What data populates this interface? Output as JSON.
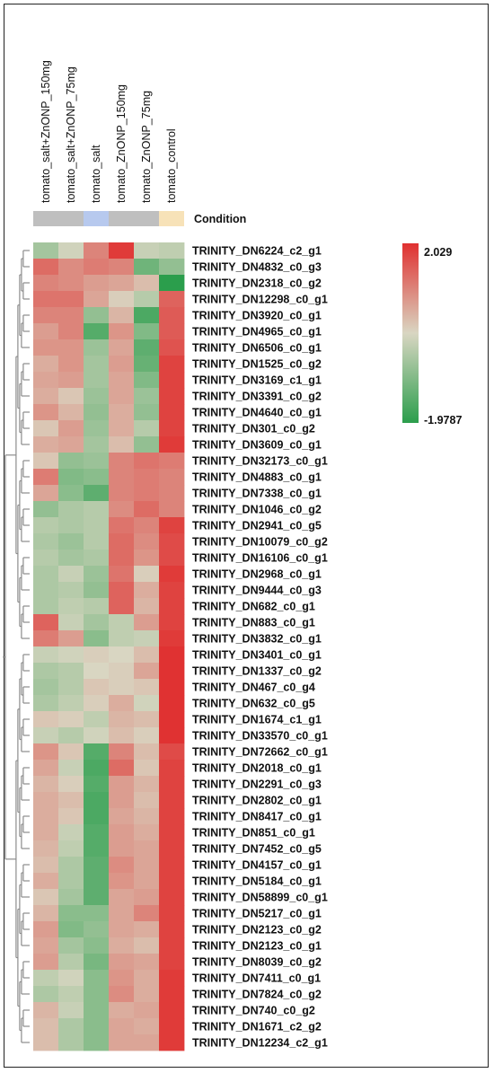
{
  "chart_data": {
    "type": "heatmap",
    "columns": [
      "tomato_salt+ZnONP_150mg",
      "tomato_salt+ZnONP_75mg",
      "tomato_salt",
      "tomato_ZnONP_150mg",
      "tomato_ZnONP_75mg",
      "tomato_control"
    ],
    "annotation": {
      "label": "Condition",
      "colors": [
        "#bfbfbf",
        "#bfbfbf",
        "#b7c9ee",
        "#bfbfbf",
        "#bfbfbf",
        "#f7e2b8"
      ]
    },
    "rows": [
      "TRINITY_DN6224_c2_g1",
      "TRINITY_DN4832_c0_g3",
      "TRINITY_DN2318_c0_g2",
      "TRINITY_DN12298_c0_g1",
      "TRINITY_DN3920_c0_g1",
      "TRINITY_DN4965_c0_g1",
      "TRINITY_DN6506_c0_g1",
      "TRINITY_DN1525_c0_g2",
      "TRINITY_DN3169_c1_g1",
      "TRINITY_DN3391_c0_g2",
      "TRINITY_DN4640_c0_g1",
      "TRINITY_DN301_c0_g2",
      "TRINITY_DN3609_c0_g1",
      "TRINITY_DN32173_c0_g1",
      "TRINITY_DN4883_c0_g1",
      "TRINITY_DN7338_c0_g1",
      "TRINITY_DN1046_c0_g2",
      "TRINITY_DN2941_c0_g5",
      "TRINITY_DN10079_c0_g2",
      "TRINITY_DN16106_c0_g1",
      "TRINITY_DN2968_c0_g1",
      "TRINITY_DN9444_c0_g3",
      "TRINITY_DN682_c0_g1",
      "TRINITY_DN883_c0_g1",
      "TRINITY_DN3832_c0_g1",
      "TRINITY_DN3401_c0_g1",
      "TRINITY_DN1337_c0_g2",
      "TRINITY_DN467_c0_g4",
      "TRINITY_DN632_c0_g5",
      "TRINITY_DN1674_c1_g1",
      "TRINITY_DN33570_c0_g1",
      "TRINITY_DN72662_c0_g1",
      "TRINITY_DN2018_c0_g1",
      "TRINITY_DN2291_c0_g3",
      "TRINITY_DN2802_c0_g1",
      "TRINITY_DN8417_c0_g1",
      "TRINITY_DN851_c0_g1",
      "TRINITY_DN7452_c0_g5",
      "TRINITY_DN4157_c0_g1",
      "TRINITY_DN5184_c0_g1",
      "TRINITY_DN58899_c0_g1",
      "TRINITY_DN5217_c0_g1",
      "TRINITY_DN2123_c0_g2",
      "TRINITY_DN2123_c0_g1",
      "TRINITY_DN8039_c0_g2",
      "TRINITY_DN7411_c0_g1",
      "TRINITY_DN7824_c0_g2",
      "TRINITY_DN740_c0_g2",
      "TRINITY_DN1671_c2_g2",
      "TRINITY_DN12234_c2_g1"
    ],
    "values": [
      [
        -0.6,
        -0.1,
        1.0,
        1.9,
        -0.2,
        -0.3
      ],
      [
        1.3,
        0.9,
        1.1,
        1.0,
        -1.2,
        -0.8
      ],
      [
        1.0,
        0.9,
        0.7,
        0.6,
        0.3,
        -2.0
      ],
      [
        1.2,
        1.2,
        0.6,
        0.1,
        -0.4,
        1.4
      ],
      [
        1.0,
        1.0,
        -0.8,
        0.4,
        -1.6,
        1.5
      ],
      [
        0.7,
        1.0,
        -1.5,
        0.8,
        -1.0,
        1.5
      ],
      [
        0.8,
        0.8,
        -0.7,
        0.6,
        -1.4,
        1.6
      ],
      [
        0.5,
        0.8,
        -0.6,
        0.7,
        -1.3,
        1.8
      ],
      [
        0.6,
        0.7,
        -0.6,
        0.6,
        -1.0,
        1.8
      ],
      [
        0.5,
        0.2,
        -0.7,
        0.6,
        -0.7,
        1.8
      ],
      [
        0.8,
        0.4,
        -0.8,
        0.5,
        -0.8,
        1.8
      ],
      [
        0.2,
        0.7,
        -0.7,
        0.5,
        -0.4,
        1.8
      ],
      [
        0.5,
        0.6,
        -0.6,
        0.3,
        -0.8,
        1.9
      ],
      [
        0.2,
        -0.8,
        -0.7,
        1.0,
        1.2,
        1.1
      ],
      [
        1.1,
        -1.0,
        -0.9,
        1.0,
        1.1,
        1.0
      ],
      [
        0.6,
        -0.9,
        -1.4,
        1.0,
        1.1,
        1.0
      ],
      [
        -0.8,
        -0.5,
        -0.4,
        0.9,
        1.3,
        1.0
      ],
      [
        -0.4,
        -0.5,
        -0.4,
        1.2,
        1.0,
        1.8
      ],
      [
        -0.5,
        -0.7,
        -0.4,
        1.3,
        0.9,
        1.7
      ],
      [
        -0.4,
        -0.6,
        -0.5,
        1.3,
        0.8,
        1.7
      ],
      [
        -0.5,
        -0.2,
        -0.7,
        1.2,
        0.1,
        1.9
      ],
      [
        -0.5,
        -0.4,
        -0.8,
        1.4,
        0.5,
        1.8
      ],
      [
        -0.5,
        -0.3,
        -0.4,
        1.4,
        0.4,
        1.8
      ],
      [
        1.4,
        -0.2,
        -0.6,
        -0.3,
        0.7,
        1.8
      ],
      [
        1.1,
        0.7,
        -0.9,
        -0.3,
        -0.2,
        1.9
      ],
      [
        -0.2,
        -0.1,
        0.1,
        0.0,
        0.3,
        2.0
      ],
      [
        -0.5,
        -0.4,
        0.0,
        0.1,
        0.6,
        2.0
      ],
      [
        -0.6,
        -0.4,
        0.2,
        0.1,
        0.2,
        2.0
      ],
      [
        -0.5,
        -0.3,
        0.1,
        0.5,
        -0.1,
        2.0
      ],
      [
        0.2,
        0.1,
        -0.3,
        0.4,
        0.3,
        2.0
      ],
      [
        -0.2,
        -0.4,
        -0.1,
        0.3,
        0.1,
        2.0
      ],
      [
        0.8,
        0.2,
        -1.5,
        1.0,
        0.3,
        1.7
      ],
      [
        0.6,
        -0.2,
        -1.6,
        1.3,
        0.2,
        1.8
      ],
      [
        0.4,
        0.1,
        -1.5,
        0.7,
        0.4,
        1.8
      ],
      [
        0.5,
        0.3,
        -1.6,
        0.7,
        0.3,
        1.8
      ],
      [
        0.5,
        0.2,
        -1.6,
        0.6,
        0.4,
        1.8
      ],
      [
        0.5,
        -0.2,
        -1.5,
        0.7,
        0.5,
        1.8
      ],
      [
        0.4,
        -0.3,
        -1.5,
        0.7,
        0.6,
        1.8
      ],
      [
        0.3,
        -0.5,
        -1.4,
        0.9,
        0.6,
        1.8
      ],
      [
        0.5,
        -0.5,
        -1.4,
        0.8,
        0.6,
        1.8
      ],
      [
        0.2,
        -0.6,
        -1.4,
        0.6,
        0.7,
        1.8
      ],
      [
        0.4,
        -0.9,
        -0.9,
        0.6,
        1.0,
        1.8
      ],
      [
        0.7,
        -1.0,
        -0.8,
        0.6,
        0.5,
        1.8
      ],
      [
        0.6,
        -0.6,
        -0.9,
        0.5,
        0.3,
        1.8
      ],
      [
        0.7,
        -0.4,
        -1.1,
        0.7,
        0.6,
        1.8
      ],
      [
        -0.3,
        -0.1,
        -0.9,
        0.8,
        0.5,
        1.9
      ],
      [
        -0.5,
        -0.3,
        -0.9,
        0.9,
        0.5,
        1.9
      ],
      [
        0.4,
        -0.2,
        -0.9,
        0.5,
        0.6,
        1.9
      ],
      [
        0.3,
        -0.5,
        -0.9,
        0.6,
        0.5,
        1.9
      ],
      [
        0.3,
        -0.5,
        -0.9,
        0.6,
        0.6,
        1.9
      ]
    ],
    "scale": {
      "max": 2.029,
      "min": -1.9787,
      "max_label": "2.029",
      "min_label": "-1.9787",
      "colors": [
        "#2b9e4c",
        "#d9d6c2",
        "#e03030"
      ]
    },
    "legend": "right",
    "grid": false
  }
}
